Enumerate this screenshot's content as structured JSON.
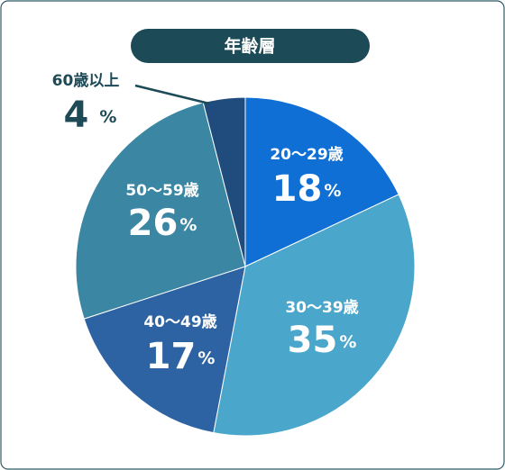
{
  "chart_data": {
    "type": "pie",
    "title": "年齢層",
    "categories": [
      "20〜29歳",
      "30〜39歳",
      "40〜49歳",
      "50〜59歳",
      "60歳以上"
    ],
    "values": [
      18,
      35,
      17,
      26,
      4
    ],
    "unit": "%",
    "colors": [
      "#0f6fd4",
      "#4aa6cb",
      "#2e63a3",
      "#3b87a3",
      "#1f4c7c"
    ]
  }
}
